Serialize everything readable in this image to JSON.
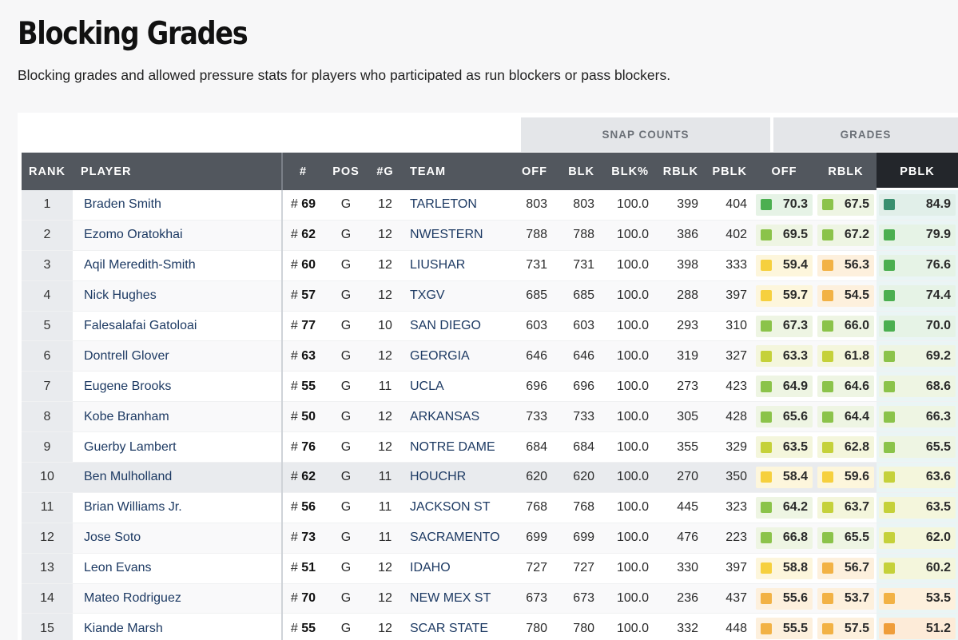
{
  "page": {
    "title": "Blocking Grades",
    "subtitle": "Blocking grades and allowed pressure stats for players who participated as run blockers or pass blockers."
  },
  "groups": {
    "snap_counts": "SNAP COUNTS",
    "grades": "GRADES"
  },
  "columns": [
    "RANK",
    "PLAYER",
    "#",
    "POS",
    "#G",
    "TEAM",
    "OFF",
    "BLK",
    "BLK%",
    "RBLK",
    "PBLK",
    "OFF",
    "RBLK",
    "PBLK"
  ],
  "colors": {
    "tier_dark_green": "#3a8f6f",
    "tier_green": "#4caf50",
    "tier_lime": "#8bc34a",
    "tier_olive": "#c5d13a",
    "tier_yellow": "#f6d03e",
    "tier_orange": "#f2b245",
    "tier_deep_orange": "#ef9d3a",
    "header_bg": "#52575e",
    "active_header_bg": "#23262b"
  },
  "rows": [
    {
      "rank": "1",
      "player": "Braden Smith",
      "jersey": "69",
      "pos": "G",
      "games": "12",
      "team": "TARLETON",
      "off": "803",
      "blk": "803",
      "blk_pct": "100.0",
      "rblk": "399",
      "pblk": "404",
      "g_off": "70.3",
      "g_rblk": "67.5",
      "g_pblk": "84.9"
    },
    {
      "rank": "2",
      "player": "Ezomo Oratokhai",
      "jersey": "62",
      "pos": "G",
      "games": "12",
      "team": "NWESTERN",
      "off": "788",
      "blk": "788",
      "blk_pct": "100.0",
      "rblk": "386",
      "pblk": "402",
      "g_off": "69.5",
      "g_rblk": "67.2",
      "g_pblk": "79.9"
    },
    {
      "rank": "3",
      "player": "Aqil Meredith-Smith",
      "jersey": "60",
      "pos": "G",
      "games": "12",
      "team": "LIUSHAR",
      "off": "731",
      "blk": "731",
      "blk_pct": "100.0",
      "rblk": "398",
      "pblk": "333",
      "g_off": "59.4",
      "g_rblk": "56.3",
      "g_pblk": "76.6"
    },
    {
      "rank": "4",
      "player": "Nick Hughes",
      "jersey": "57",
      "pos": "G",
      "games": "12",
      "team": "TXGV",
      "off": "685",
      "blk": "685",
      "blk_pct": "100.0",
      "rblk": "288",
      "pblk": "397",
      "g_off": "59.7",
      "g_rblk": "54.5",
      "g_pblk": "74.4"
    },
    {
      "rank": "5",
      "player": "Falesalafai Gatoloai",
      "jersey": "77",
      "pos": "G",
      "games": "10",
      "team": "SAN DIEGO",
      "off": "603",
      "blk": "603",
      "blk_pct": "100.0",
      "rblk": "293",
      "pblk": "310",
      "g_off": "67.3",
      "g_rblk": "66.0",
      "g_pblk": "70.0"
    },
    {
      "rank": "6",
      "player": "Dontrell Glover",
      "jersey": "63",
      "pos": "G",
      "games": "12",
      "team": "GEORGIA",
      "off": "646",
      "blk": "646",
      "blk_pct": "100.0",
      "rblk": "319",
      "pblk": "327",
      "g_off": "63.3",
      "g_rblk": "61.8",
      "g_pblk": "69.2"
    },
    {
      "rank": "7",
      "player": "Eugene Brooks",
      "jersey": "55",
      "pos": "G",
      "games": "11",
      "team": "UCLA",
      "off": "696",
      "blk": "696",
      "blk_pct": "100.0",
      "rblk": "273",
      "pblk": "423",
      "g_off": "64.9",
      "g_rblk": "64.6",
      "g_pblk": "68.6"
    },
    {
      "rank": "8",
      "player": "Kobe Branham",
      "jersey": "50",
      "pos": "G",
      "games": "12",
      "team": "ARKANSAS",
      "off": "733",
      "blk": "733",
      "blk_pct": "100.0",
      "rblk": "305",
      "pblk": "428",
      "g_off": "65.6",
      "g_rblk": "64.4",
      "g_pblk": "66.3"
    },
    {
      "rank": "9",
      "player": "Guerby Lambert",
      "jersey": "76",
      "pos": "G",
      "games": "12",
      "team": "NOTRE DAME",
      "off": "684",
      "blk": "684",
      "blk_pct": "100.0",
      "rblk": "355",
      "pblk": "329",
      "g_off": "63.5",
      "g_rblk": "62.8",
      "g_pblk": "65.5"
    },
    {
      "rank": "10",
      "player": "Ben Mulholland",
      "jersey": "62",
      "pos": "G",
      "games": "11",
      "team": "HOUCHR",
      "off": "620",
      "blk": "620",
      "blk_pct": "100.0",
      "rblk": "270",
      "pblk": "350",
      "g_off": "58.4",
      "g_rblk": "59.6",
      "g_pblk": "63.6"
    },
    {
      "rank": "11",
      "player": "Brian Williams Jr.",
      "jersey": "56",
      "pos": "G",
      "games": "11",
      "team": "JACKSON ST",
      "off": "768",
      "blk": "768",
      "blk_pct": "100.0",
      "rblk": "445",
      "pblk": "323",
      "g_off": "64.2",
      "g_rblk": "63.7",
      "g_pblk": "63.5"
    },
    {
      "rank": "12",
      "player": "Jose Soto",
      "jersey": "73",
      "pos": "G",
      "games": "11",
      "team": "SACRAMENTO",
      "off": "699",
      "blk": "699",
      "blk_pct": "100.0",
      "rblk": "476",
      "pblk": "223",
      "g_off": "66.8",
      "g_rblk": "65.5",
      "g_pblk": "62.0"
    },
    {
      "rank": "13",
      "player": "Leon Evans",
      "jersey": "51",
      "pos": "G",
      "games": "12",
      "team": "IDAHO",
      "off": "727",
      "blk": "727",
      "blk_pct": "100.0",
      "rblk": "330",
      "pblk": "397",
      "g_off": "58.8",
      "g_rblk": "56.7",
      "g_pblk": "60.2"
    },
    {
      "rank": "14",
      "player": "Mateo Rodriguez",
      "jersey": "70",
      "pos": "G",
      "games": "12",
      "team": "NEW MEX ST",
      "off": "673",
      "blk": "673",
      "blk_pct": "100.0",
      "rblk": "236",
      "pblk": "437",
      "g_off": "55.6",
      "g_rblk": "53.7",
      "g_pblk": "53.5"
    },
    {
      "rank": "15",
      "player": "Kiande Marsh",
      "jersey": "55",
      "pos": "G",
      "games": "12",
      "team": "SCAR STATE",
      "off": "780",
      "blk": "780",
      "blk_pct": "100.0",
      "rblk": "332",
      "pblk": "448",
      "g_off": "55.5",
      "g_rblk": "57.5",
      "g_pblk": "51.2"
    }
  ]
}
